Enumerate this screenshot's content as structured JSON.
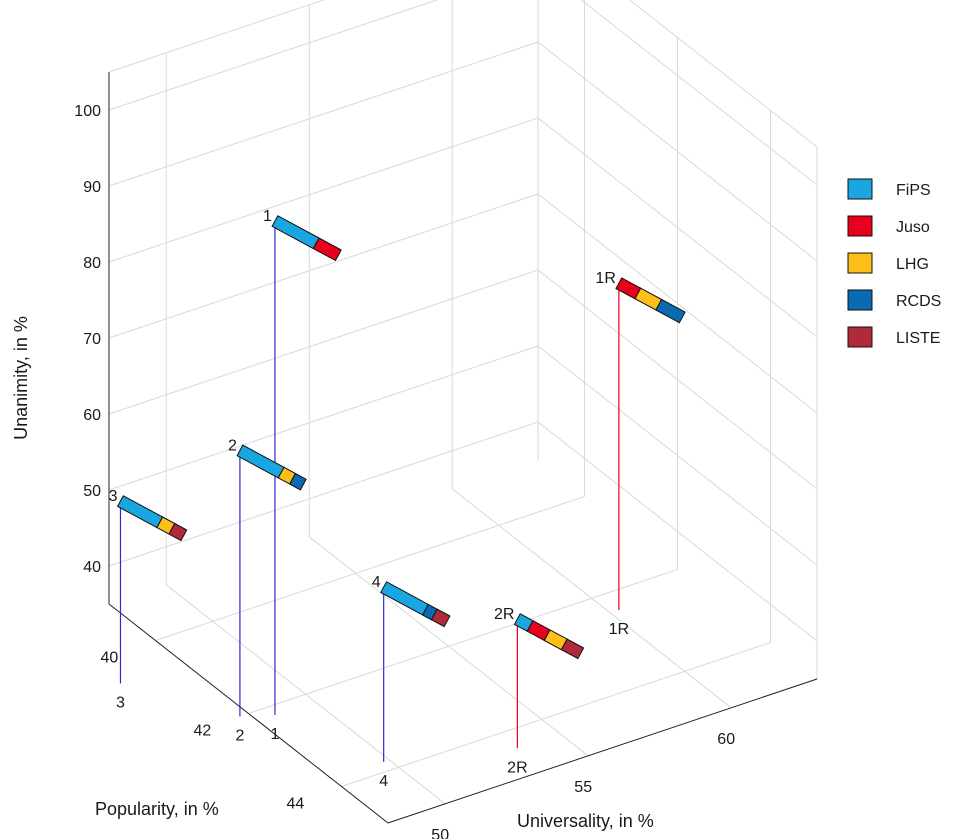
{
  "chart_data": {
    "type": "scatter",
    "projection": "3d",
    "xlabel": "Popularity, in %",
    "ylabel": "Universality, in %",
    "zlabel": "Unanimity, in %",
    "x_ticks": [
      "40",
      "42",
      "44"
    ],
    "y_ticks": [
      "50",
      "55",
      "60"
    ],
    "z_ticks": [
      "40",
      "50",
      "60",
      "70",
      "80",
      "90",
      "100"
    ],
    "xlim": [
      39,
      45
    ],
    "ylim": [
      48,
      63
    ],
    "zlim": [
      35,
      105
    ],
    "grid": true,
    "legend_position": "right",
    "legend": [
      {
        "name": "FiPS",
        "color": "#1aa6e0"
      },
      {
        "name": "Juso",
        "color": "#e8001c"
      },
      {
        "name": "LHG",
        "color": "#ffbf1a"
      },
      {
        "name": "RCDS",
        "color": "#0a6bb3"
      },
      {
        "name": "LISTE",
        "color": "#b02a3a"
      }
    ],
    "points": [
      {
        "label": "1",
        "x": 42.2,
        "y": 48.6,
        "z": 100,
        "line_color": "#2b2bd6",
        "bar": [
          {
            "party": "FiPS",
            "share": 0.65
          },
          {
            "party": "Juso",
            "share": 0.35
          }
        ]
      },
      {
        "label": "2",
        "x": 42.0,
        "y": 47.7,
        "z": 70,
        "line_color": "#2b2bd6",
        "bar": [
          {
            "party": "FiPS",
            "share": 0.65
          },
          {
            "party": "LHG",
            "share": 0.18
          },
          {
            "party": "RCDS",
            "share": 0.17
          }
        ]
      },
      {
        "label": "3",
        "x": 40.6,
        "y": 45.8,
        "z": 59,
        "line_color": "#2b2bd6",
        "bar": [
          {
            "party": "FiPS",
            "share": 0.62
          },
          {
            "party": "LHG",
            "share": 0.19
          },
          {
            "party": "LISTE",
            "share": 0.19
          }
        ]
      },
      {
        "label": "4",
        "x": 43.8,
        "y": 49.8,
        "z": 58,
        "line_color": "#2b2bd6",
        "bar": [
          {
            "party": "FiPS",
            "share": 0.66
          },
          {
            "party": "RCDS",
            "share": 0.14
          },
          {
            "party": "LISTE",
            "share": 0.2
          }
        ]
      },
      {
        "label": "2R",
        "x": 44.4,
        "y": 53.5,
        "z": 52,
        "line_color": "#e8001c",
        "bar": [
          {
            "party": "FiPS",
            "share": 0.2
          },
          {
            "party": "Juso",
            "share": 0.27
          },
          {
            "party": "LHG",
            "share": 0.27
          },
          {
            "party": "LISTE",
            "share": 0.26
          }
        ]
      },
      {
        "label": "1R",
        "x": 42.4,
        "y": 60.3,
        "z": 78,
        "line_color": "#e8001c",
        "bar": [
          {
            "party": "Juso",
            "share": 0.3
          },
          {
            "party": "LHG",
            "share": 0.33
          },
          {
            "party": "RCDS",
            "share": 0.37
          }
        ]
      }
    ]
  }
}
